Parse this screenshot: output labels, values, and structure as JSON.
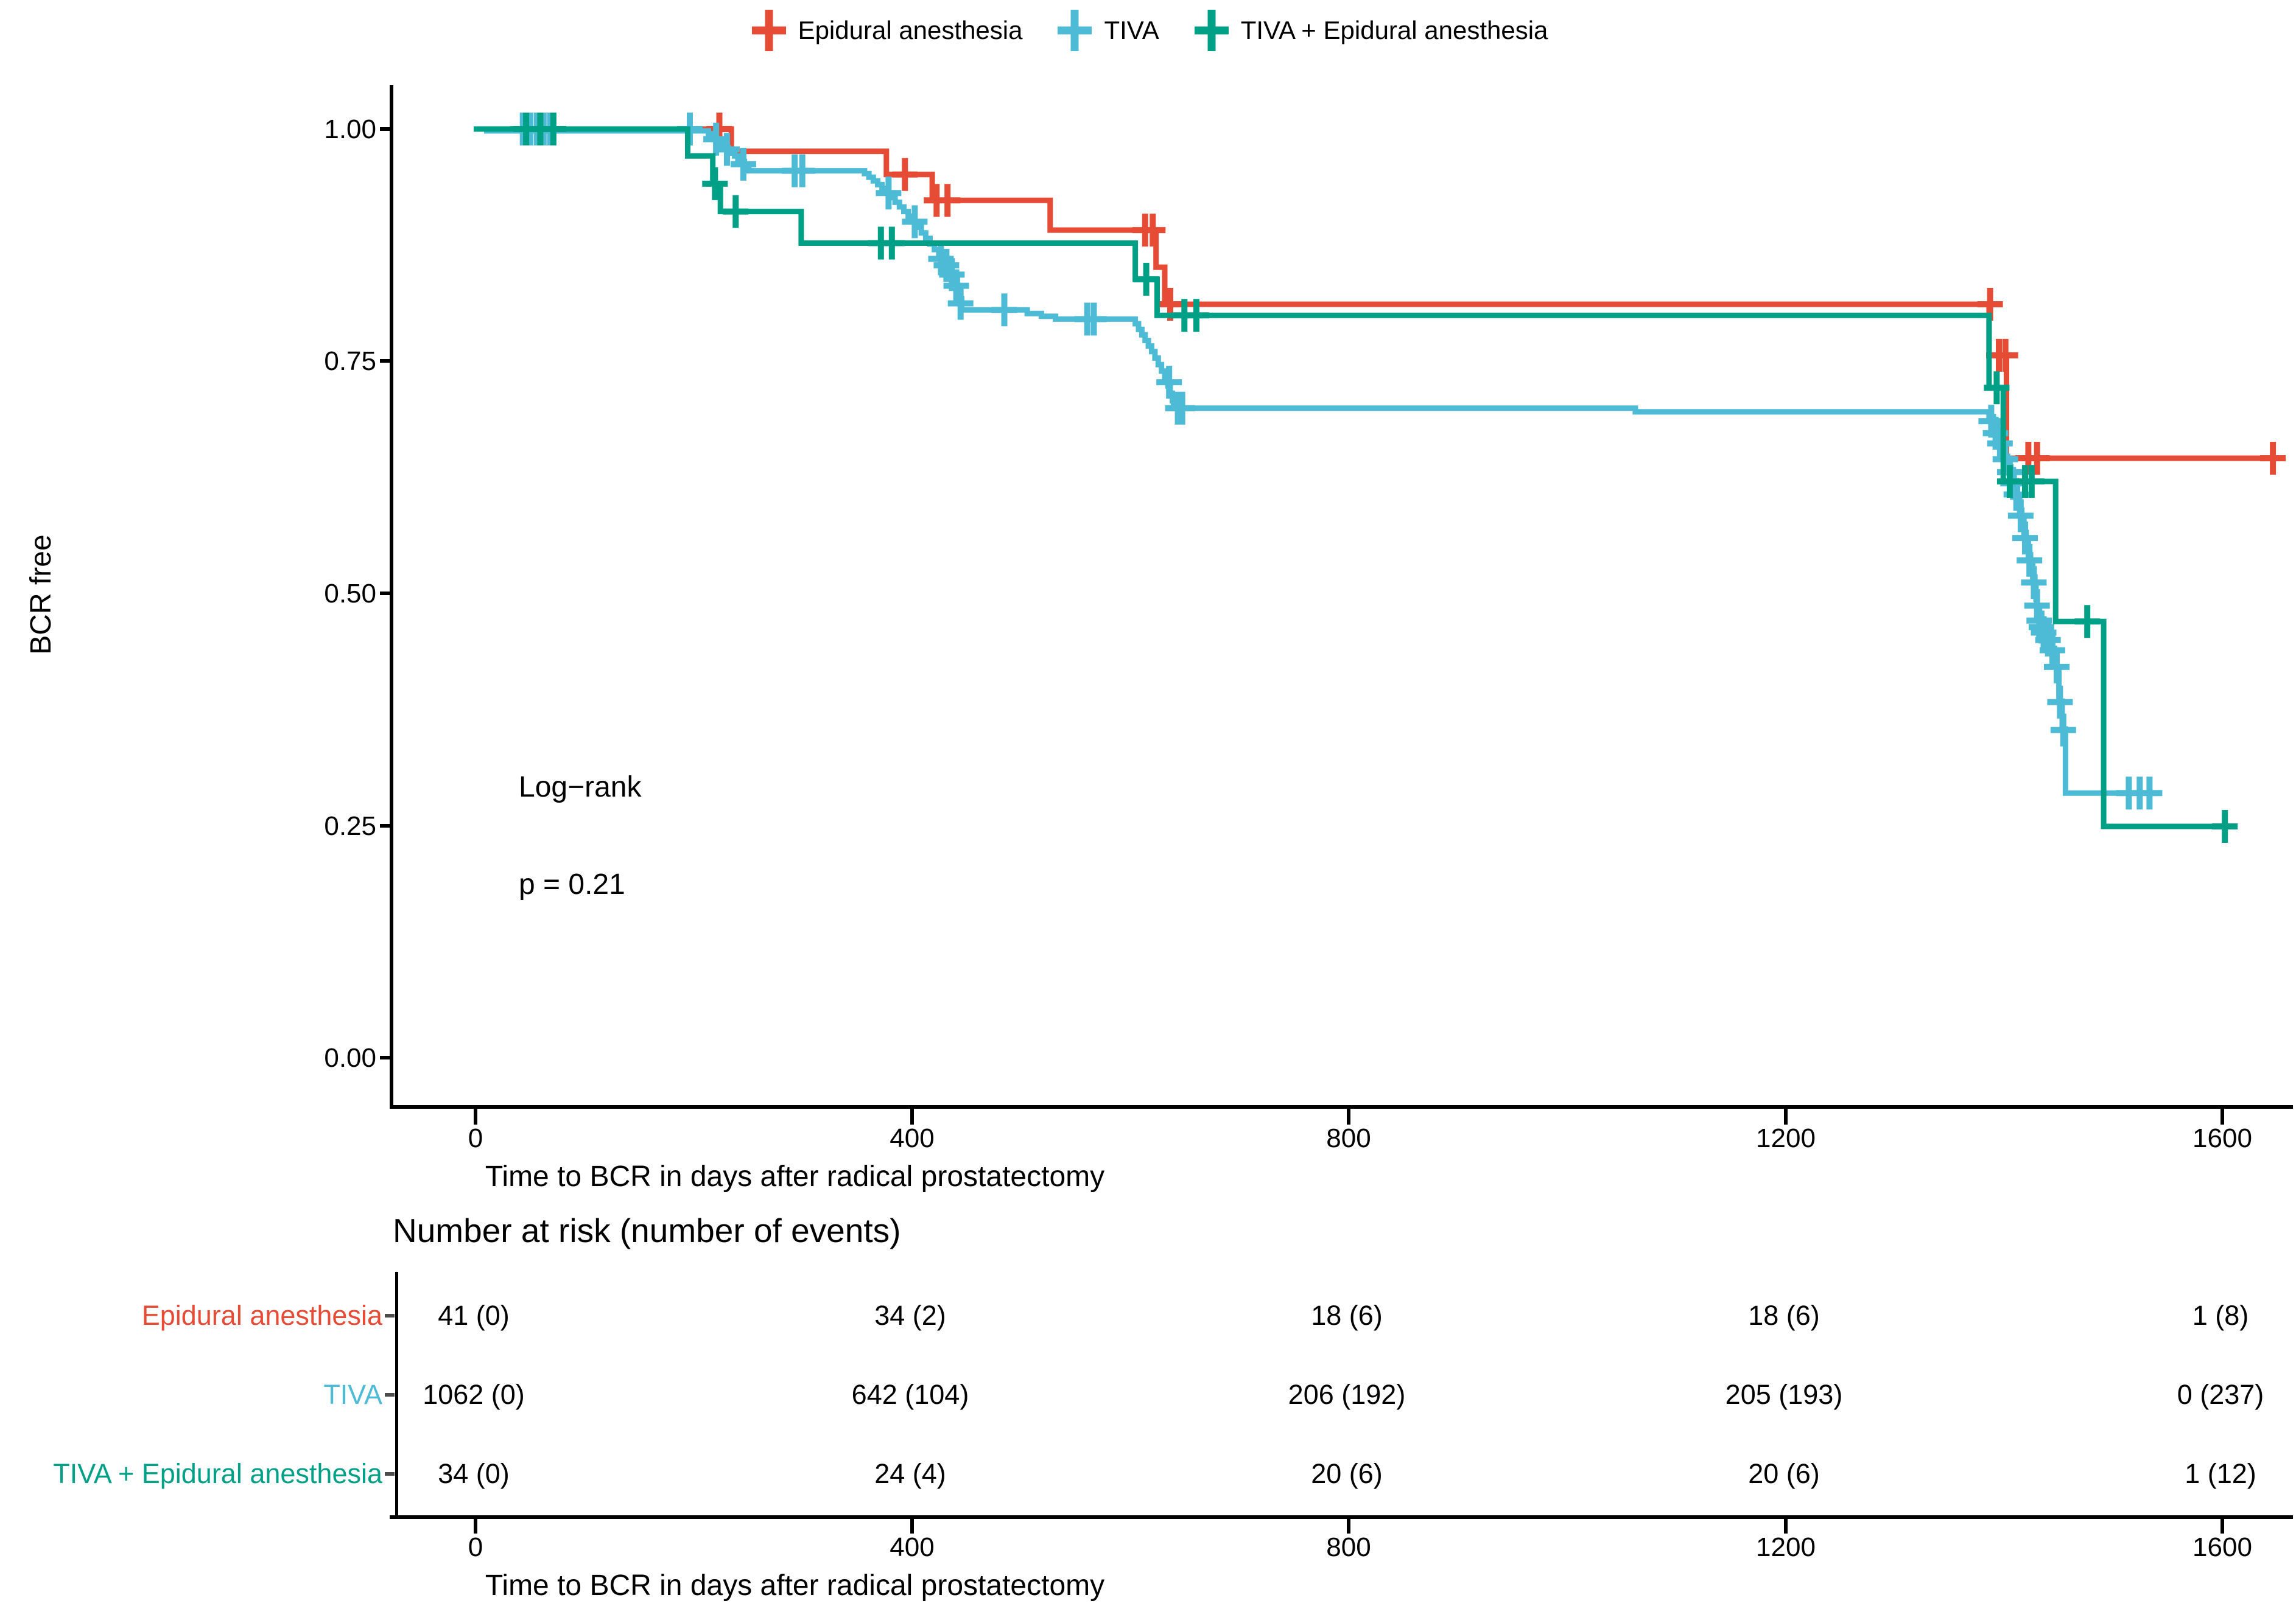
{
  "figure": {
    "ylabel": "BCR free",
    "xlabel": "Time to BCR in days after radical prostatectomy",
    "log_rank_label": "Log−rank",
    "p_value_label": "p = 0.21"
  },
  "legend": {
    "items": [
      {
        "label": "Epidural anesthesia",
        "color": "#E64B35"
      },
      {
        "label": "TIVA",
        "color": "#4DBBD5"
      },
      {
        "label": "TIVA + Epidural anesthesia",
        "color": "#00A087"
      }
    ]
  },
  "chart_data": {
    "type": "line",
    "subtype": "kaplan-meier-step",
    "title": "",
    "xlabel": "Time to BCR in days after radical prostatectomy",
    "ylabel": "BCR free",
    "xlim": [
      0,
      1663
    ],
    "ylim": [
      0,
      1
    ],
    "grid": false,
    "legend_position": "top",
    "x_ticks": [
      0,
      400,
      800,
      1200,
      1600
    ],
    "x_tick_labels": [
      "0",
      "400",
      "800",
      "1200",
      "1600"
    ],
    "y_ticks": [
      1.0,
      0.75,
      0.5,
      0.25,
      0.0
    ],
    "y_tick_labels": [
      "1.00",
      "0.75",
      "0.50",
      "0.25",
      "0.00"
    ],
    "annotations": [
      {
        "text": "Log−rank",
        "x_day": 40,
        "y_surv": 0.28
      },
      {
        "text": "p = 0.21",
        "x_day": 40,
        "y_surv": 0.175
      }
    ],
    "series": [
      {
        "name": "Epidural anesthesia",
        "color": "#E64B35",
        "steps": [
          [
            0,
            1
          ],
          [
            236,
            0.976
          ],
          [
            378,
            0.951
          ],
          [
            420,
            0.923
          ],
          [
            528,
            0.891
          ],
          [
            625,
            0.851
          ],
          [
            633,
            0.811
          ],
          [
            1388,
            0.756
          ],
          [
            1404,
            0.645
          ],
          [
            1652,
            0.645
          ]
        ],
        "censors": [
          [
            225,
            1
          ],
          [
            395,
            0.951
          ],
          [
            424,
            0.923
          ],
          [
            434,
            0.923
          ],
          [
            615,
            0.891
          ],
          [
            622,
            0.891
          ],
          [
            638,
            0.811
          ],
          [
            1389,
            0.811
          ],
          [
            1397,
            0.756
          ],
          [
            1403,
            0.756
          ],
          [
            1424,
            0.645
          ],
          [
            1432,
            0.645
          ],
          [
            1648,
            0.645
          ]
        ]
      },
      {
        "name": "TIVA",
        "color": "#4DBBD5",
        "steps": [
          [
            0,
            1
          ],
          [
            12,
            0.998
          ],
          [
            215,
            0.995
          ],
          [
            218,
            0.992
          ],
          [
            221,
            0.989
          ],
          [
            224,
            0.986
          ],
          [
            227,
            0.983
          ],
          [
            230,
            0.98
          ],
          [
            233,
            0.977
          ],
          [
            236,
            0.974
          ],
          [
            239,
            0.971
          ],
          [
            242,
            0.968
          ],
          [
            245,
            0.965
          ],
          [
            248,
            0.961
          ],
          [
            250,
            0.958
          ],
          [
            252,
            0.955
          ],
          [
            358,
            0.952
          ],
          [
            362,
            0.948
          ],
          [
            366,
            0.944
          ],
          [
            370,
            0.94
          ],
          [
            374,
            0.936
          ],
          [
            378,
            0.931
          ],
          [
            382,
            0.926
          ],
          [
            386,
            0.921
          ],
          [
            390,
            0.916
          ],
          [
            394,
            0.911
          ],
          [
            398,
            0.906
          ],
          [
            402,
            0.9
          ],
          [
            406,
            0.894
          ],
          [
            410,
            0.888
          ],
          [
            414,
            0.882
          ],
          [
            418,
            0.876
          ],
          [
            422,
            0.87
          ],
          [
            426,
            0.864
          ],
          [
            430,
            0.858
          ],
          [
            434,
            0.851
          ],
          [
            437,
            0.845
          ],
          [
            440,
            0.838
          ],
          [
            443,
            0.828
          ],
          [
            445,
            0.817
          ],
          [
            447,
            0.805
          ],
          [
            507,
            0.801
          ],
          [
            520,
            0.798
          ],
          [
            533,
            0.795
          ],
          [
            606,
            0.79
          ],
          [
            609,
            0.784
          ],
          [
            612,
            0.778
          ],
          [
            615,
            0.772
          ],
          [
            618,
            0.766
          ],
          [
            621,
            0.76
          ],
          [
            624,
            0.753
          ],
          [
            627,
            0.746
          ],
          [
            630,
            0.739
          ],
          [
            633,
            0.731
          ],
          [
            636,
            0.723
          ],
          [
            638,
            0.715
          ],
          [
            640,
            0.707
          ],
          [
            641,
            0.699
          ],
          [
            1064,
            0.695
          ],
          [
            1388,
            0.69
          ],
          [
            1392,
            0.68
          ],
          [
            1396,
            0.669
          ],
          [
            1399,
            0.658
          ],
          [
            1402,
            0.647
          ],
          [
            1405,
            0.636
          ],
          [
            1408,
            0.625
          ],
          [
            1411,
            0.613
          ],
          [
            1414,
            0.601
          ],
          [
            1416,
            0.589
          ],
          [
            1418,
            0.577
          ],
          [
            1420,
            0.565
          ],
          [
            1422,
            0.553
          ],
          [
            1424,
            0.541
          ],
          [
            1426,
            0.529
          ],
          [
            1428,
            0.517
          ],
          [
            1430,
            0.505
          ],
          [
            1431,
            0.493
          ],
          [
            1432,
            0.481
          ],
          [
            1433,
            0.47
          ],
          [
            1436,
            0.46
          ],
          [
            1440,
            0.45
          ],
          [
            1444,
            0.44
          ],
          [
            1448,
            0.429
          ],
          [
            1450,
            0.418
          ],
          [
            1452,
            0.383
          ],
          [
            1455,
            0.353
          ],
          [
            1458,
            0.284
          ],
          [
            1540,
            0.284
          ]
        ],
        "censors": [
          [
            45,
            1
          ],
          [
            52,
            1
          ],
          [
            58,
            1
          ],
          [
            64,
            1
          ],
          [
            70,
            1
          ],
          [
            198,
            1
          ],
          [
            222,
            0.989
          ],
          [
            232,
            0.978
          ],
          [
            247,
            0.962
          ],
          [
            294,
            0.955
          ],
          [
            301,
            0.955
          ],
          [
            380,
            0.931
          ],
          [
            404,
            0.9
          ],
          [
            428,
            0.86
          ],
          [
            433,
            0.853
          ],
          [
            438,
            0.843
          ],
          [
            442,
            0.831
          ],
          [
            446,
            0.812
          ],
          [
            486,
            0.805
          ],
          [
            562,
            0.795
          ],
          [
            568,
            0.795
          ],
          [
            637,
            0.727
          ],
          [
            645,
            0.699
          ],
          [
            649,
            0.699
          ],
          [
            1390,
            0.685
          ],
          [
            1394,
            0.672
          ],
          [
            1398,
            0.661
          ],
          [
            1403,
            0.644
          ],
          [
            1407,
            0.63
          ],
          [
            1410,
            0.618
          ],
          [
            1413,
            0.606
          ],
          [
            1417,
            0.583
          ],
          [
            1421,
            0.559
          ],
          [
            1425,
            0.535
          ],
          [
            1429,
            0.511
          ],
          [
            1432,
            0.486
          ],
          [
            1434,
            0.47
          ],
          [
            1436,
            0.463
          ],
          [
            1438,
            0.457
          ],
          [
            1442,
            0.449
          ],
          [
            1446,
            0.438
          ],
          [
            1450,
            0.42
          ],
          [
            1453,
            0.382
          ],
          [
            1456,
            0.352
          ],
          [
            1516,
            0.284
          ],
          [
            1526,
            0.284
          ],
          [
            1535,
            0.284
          ]
        ]
      },
      {
        "name": "TIVA + Epidural anesthesia",
        "color": "#00A087",
        "steps": [
          [
            0,
            1
          ],
          [
            196,
            0.971
          ],
          [
            219,
            0.941
          ],
          [
            226,
            0.911
          ],
          [
            300,
            0.877
          ],
          [
            606,
            0.838
          ],
          [
            626,
            0.799
          ],
          [
            1388,
            0.721
          ],
          [
            1401,
            0.62
          ],
          [
            1449,
            0.469
          ],
          [
            1493,
            0.248
          ],
          [
            1604,
            0.248
          ]
        ],
        "censors": [
          [
            48,
            1
          ],
          [
            61,
            1
          ],
          [
            73,
            1
          ],
          [
            221,
            0.941
          ],
          [
            240,
            0.911
          ],
          [
            373,
            0.877
          ],
          [
            383,
            0.877
          ],
          [
            616,
            0.838
          ],
          [
            651,
            0.799
          ],
          [
            662,
            0.799
          ],
          [
            1395,
            0.721
          ],
          [
            1407,
            0.62
          ],
          [
            1421,
            0.62
          ],
          [
            1427,
            0.62
          ],
          [
            1478,
            0.469
          ],
          [
            1604,
            0.248
          ]
        ]
      }
    ]
  },
  "risk_table": {
    "title": "Number at risk (number of events)",
    "x_ticks": [
      0,
      400,
      800,
      1200,
      1600
    ],
    "x_tick_labels": [
      "0",
      "400",
      "800",
      "1200",
      "1600"
    ],
    "xlabel": "Time to BCR in days after radical prostatectomy",
    "rows": [
      {
        "label": "Epidural anesthesia",
        "color": "#E64B35",
        "values": [
          "41 (0)",
          "34 (2)",
          "18 (6)",
          "18 (6)",
          "1 (8)"
        ]
      },
      {
        "label": "TIVA",
        "color": "#4DBBD5",
        "values": [
          "1062 (0)",
          "642 (104)",
          "206 (192)",
          "205 (193)",
          "0 (237)"
        ]
      },
      {
        "label": "TIVA + Epidural anesthesia",
        "color": "#00A087",
        "values": [
          "34 (0)",
          "24 (4)",
          "20 (6)",
          "20 (6)",
          "1 (12)"
        ]
      }
    ]
  }
}
